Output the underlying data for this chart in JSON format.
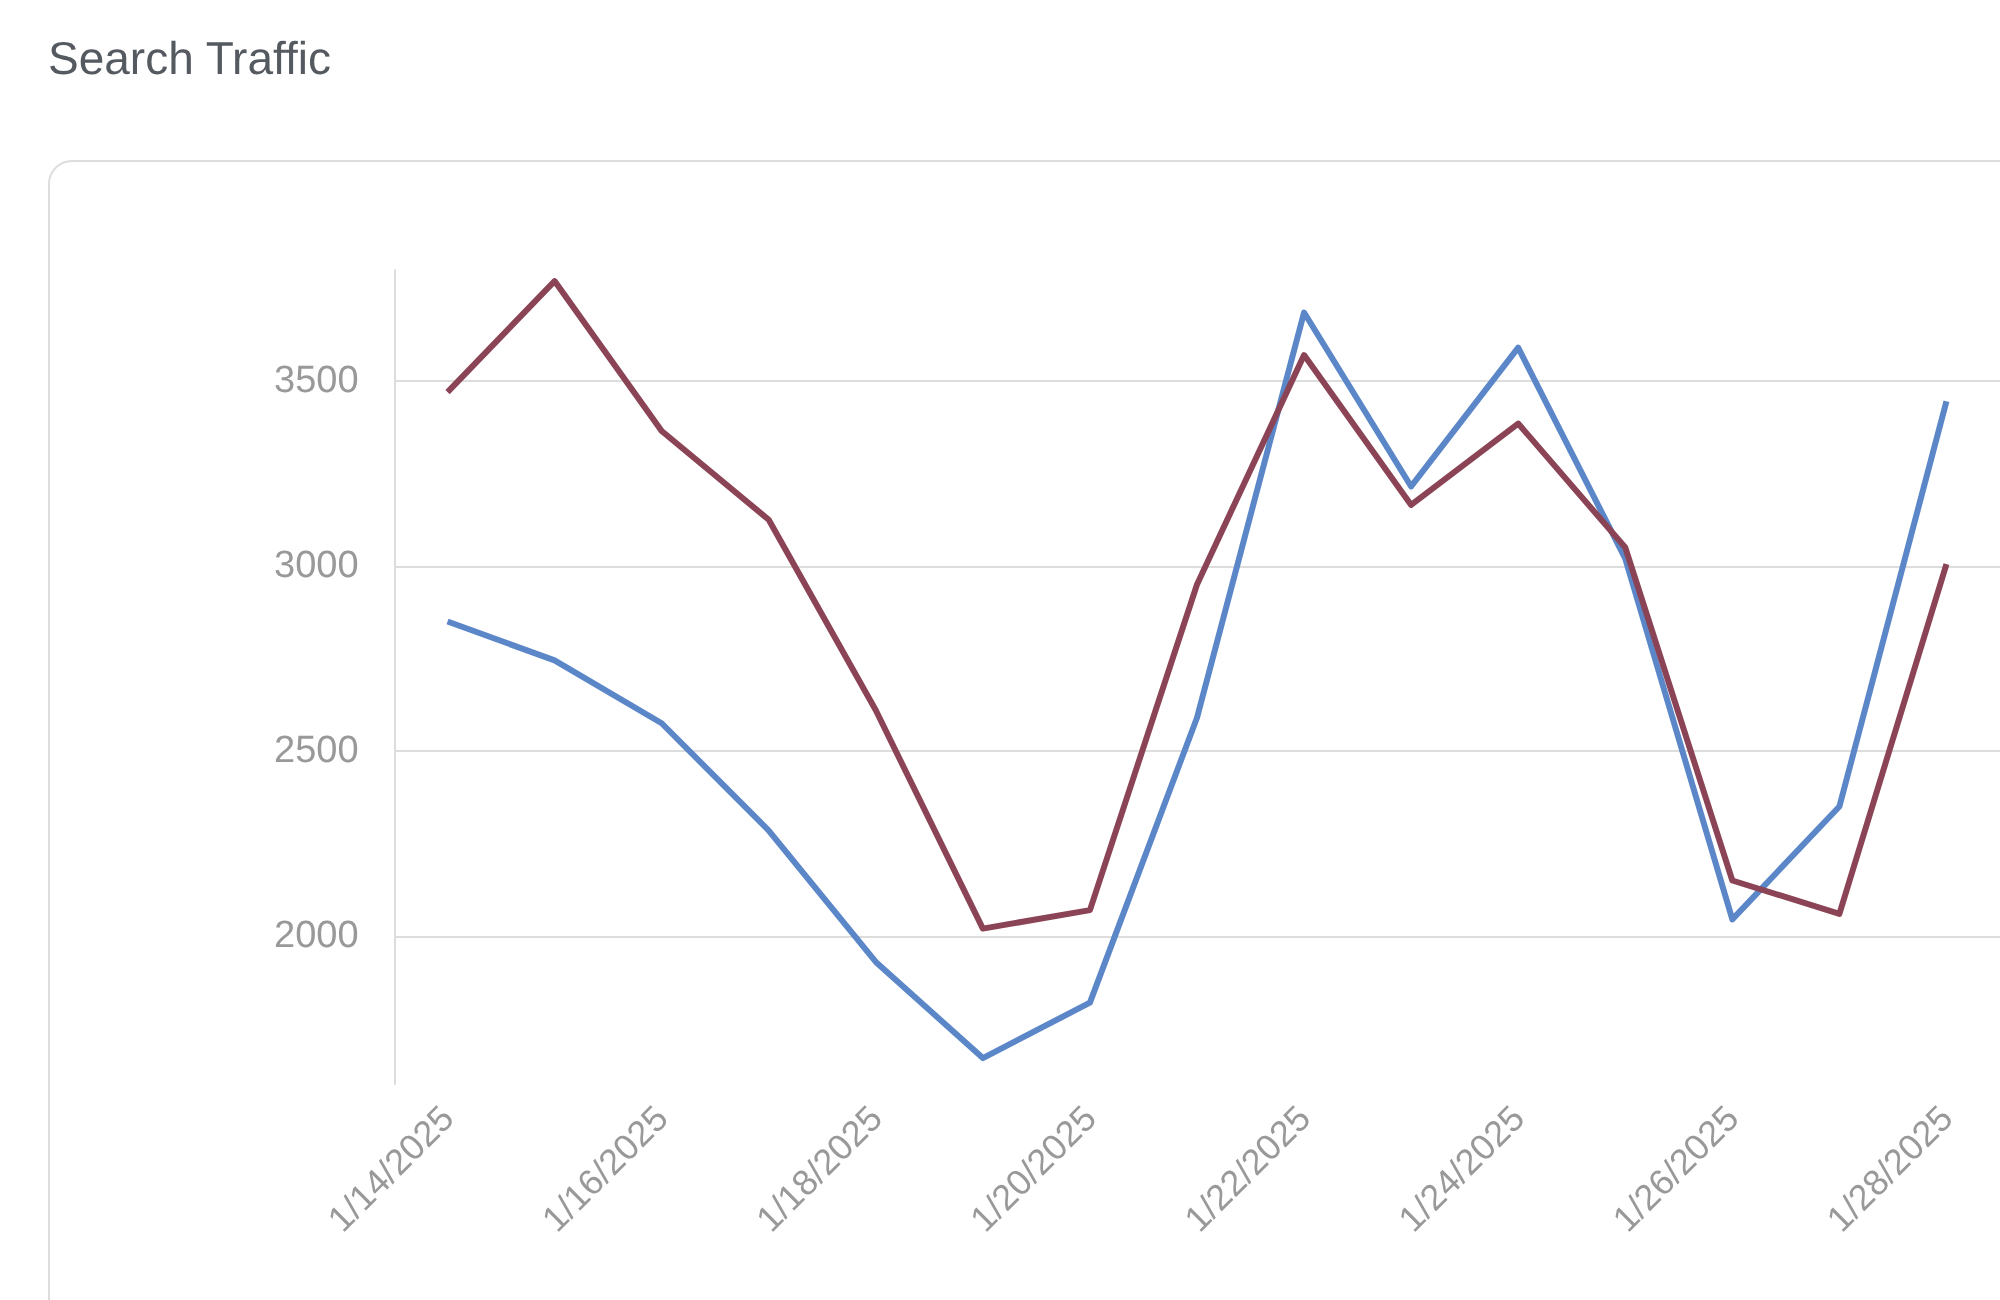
{
  "chart_data": {
    "type": "line",
    "title": "Search Traffic",
    "categories": [
      "1/14/2025",
      null,
      "1/16/2025",
      null,
      "1/18/2025",
      null,
      "1/20/2025",
      null,
      "1/22/2025",
      null,
      "1/24/2025",
      null,
      "1/26/2025",
      null,
      "1/28/2025"
    ],
    "series": [
      {
        "color": "#5b87c9",
        "values": [
          2850,
          2745,
          2575,
          2285,
          1930,
          1670,
          1820,
          2590,
          3685,
          3215,
          3590,
          3020,
          2045,
          2350,
          3445
        ]
      },
      {
        "color": "#8b4455",
        "values": [
          3470,
          3770,
          3365,
          3125,
          2610,
          2020,
          2070,
          2950,
          3570,
          3165,
          3385,
          3050,
          2150,
          2060,
          3005
        ]
      }
    ],
    "ylim": [
      1600,
      3800
    ],
    "yticks": [
      2000,
      2500,
      3000,
      3500
    ],
    "grid": "y",
    "marker": "none",
    "line_style": "solid"
  }
}
